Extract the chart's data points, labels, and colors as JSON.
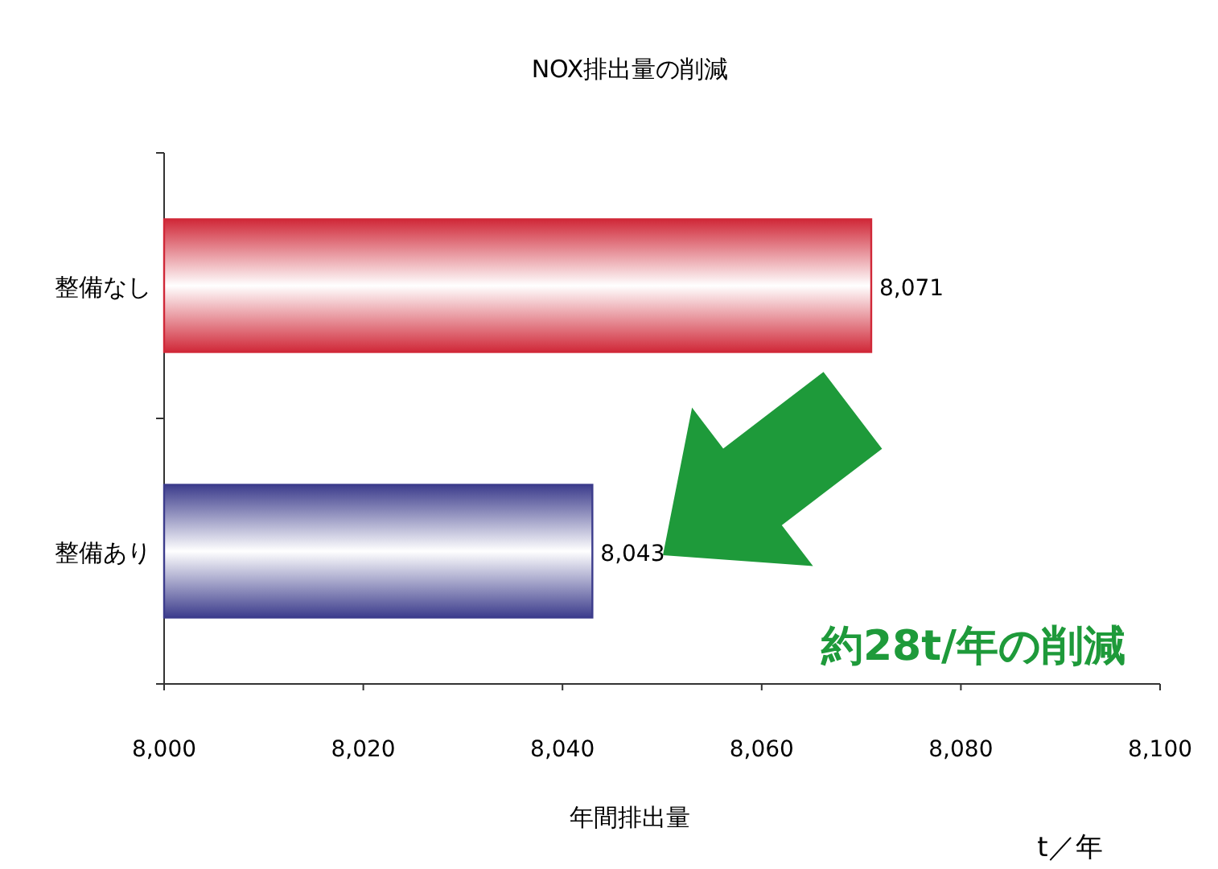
{
  "chart_data": {
    "type": "bar",
    "orientation": "horizontal",
    "title": "NOX排出量の削減",
    "xlabel": "年間排出量",
    "categories": [
      "整備なし",
      "整備あり"
    ],
    "values": [
      8071,
      8043
    ],
    "colors": [
      "#d02838",
      "#3c3c8c"
    ],
    "value_labels": [
      "8,071",
      "8,043"
    ],
    "xlim": [
      8000,
      8100
    ],
    "xticks": [
      {
        "value": 8000,
        "label": "8,000"
      },
      {
        "value": 8020,
        "label": "8,020"
      },
      {
        "value": 8040,
        "label": "8,040"
      },
      {
        "value": 8060,
        "label": "8,060"
      },
      {
        "value": 8080,
        "label": "8,080"
      },
      {
        "value": 8100,
        "label": "8,100"
      }
    ],
    "annotations": [
      "約28t/年の削減",
      "t／年"
    ],
    "grid": false
  }
}
